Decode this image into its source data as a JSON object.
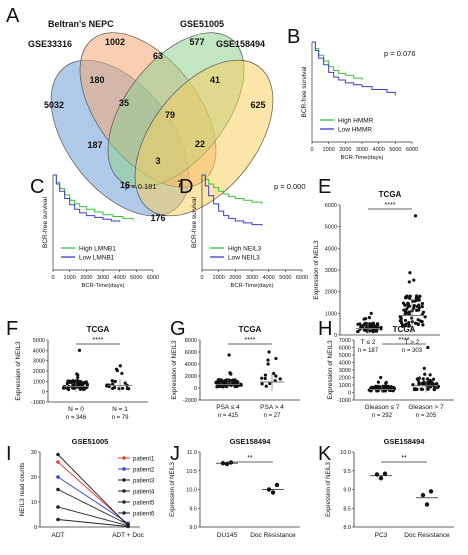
{
  "chart_data": [
    {
      "type": "venn",
      "panel": "A",
      "sets": [
        "GSE33316",
        "Beltran's NEPC",
        "GSE51005",
        "GSE158494"
      ],
      "colors": [
        "#6e9fd6",
        "#f2a773",
        "#8fd08f",
        "#f7cf63"
      ],
      "regions": [
        "5032",
        "1002",
        "577",
        "625",
        "180",
        "63",
        "41",
        "35",
        "3",
        "22",
        "187",
        "16",
        "7",
        "176",
        "79"
      ]
    },
    {
      "type": "line",
      "panel": "B",
      "subtype": "kaplan-meier",
      "annotation": "p = 0.076",
      "ylabel": "BCR-free survival",
      "xlabel": "BCR-Time(days)",
      "xticks": [
        "0",
        "1000",
        "2000",
        "3000",
        "4000",
        "5000",
        "6000"
      ],
      "series": [
        {
          "name": "High HMMR",
          "color": "#39c03c",
          "x": [
            0,
            200,
            400,
            700,
            1000,
            1300,
            1600,
            2000,
            2500,
            3000
          ],
          "y": [
            1.0,
            0.93,
            0.86,
            0.8,
            0.74,
            0.7,
            0.67,
            0.65,
            0.62,
            0.6
          ]
        },
        {
          "name": "Low HMMR",
          "color": "#3b3fc4",
          "x": [
            0,
            200,
            400,
            700,
            1000,
            1300,
            1600,
            2000,
            2500,
            3000,
            3600,
            4500,
            5000
          ],
          "y": [
            1.0,
            0.91,
            0.83,
            0.76,
            0.68,
            0.63,
            0.6,
            0.57,
            0.55,
            0.53,
            0.5,
            0.47,
            0.44
          ]
        }
      ]
    },
    {
      "type": "line",
      "panel": "C",
      "subtype": "kaplan-meier",
      "annotation": "p = 0.181",
      "ylabel": "BCR-free survival",
      "xlabel": "BCR-Time(days)",
      "xticks": [
        "0",
        "1000",
        "2000",
        "3000",
        "4000",
        "5000",
        "6000"
      ],
      "series": [
        {
          "name": "High LMNB1",
          "color": "#39c03c",
          "x": [
            0,
            200,
            400,
            700,
            1000,
            1300,
            1600,
            2000,
            2500,
            3000,
            3600,
            4200,
            4800
          ],
          "y": [
            1.0,
            0.92,
            0.85,
            0.78,
            0.72,
            0.68,
            0.65,
            0.62,
            0.59,
            0.56,
            0.54,
            0.52,
            0.5
          ]
        },
        {
          "name": "Low LMNB1",
          "color": "#3b3fc4",
          "x": [
            0,
            200,
            400,
            700,
            1000,
            1300,
            1600,
            2000,
            2500,
            3000,
            3500,
            4000
          ],
          "y": [
            1.0,
            0.9,
            0.82,
            0.74,
            0.67,
            0.62,
            0.58,
            0.55,
            0.53,
            0.51,
            0.49,
            0.48
          ]
        }
      ]
    },
    {
      "type": "line",
      "panel": "D",
      "subtype": "kaplan-meier",
      "annotation": "p = 0.000",
      "ylabel": "BCR-free survival",
      "xlabel": "BCR-Time(days)",
      "xticks": [
        "0",
        "1000",
        "2000",
        "3000",
        "4000",
        "5000",
        "6000"
      ],
      "series": [
        {
          "name": "High NEIL3",
          "color": "#39c03c",
          "x": [
            0,
            200,
            400,
            700,
            1000,
            1300,
            1600,
            2000,
            2500,
            3000,
            3600
          ],
          "y": [
            1.0,
            0.95,
            0.9,
            0.86,
            0.82,
            0.79,
            0.76,
            0.74,
            0.72,
            0.7,
            0.68
          ]
        },
        {
          "name": "Low NEIL3",
          "color": "#3b3fc4",
          "x": [
            0,
            200,
            400,
            700,
            1000,
            1300,
            1600,
            2000,
            2500,
            3000,
            3600
          ],
          "y": [
            1.0,
            0.88,
            0.77,
            0.68,
            0.6,
            0.55,
            0.52,
            0.49,
            0.47,
            0.45,
            0.44
          ]
        }
      ]
    },
    {
      "type": "scatter",
      "panel": "E",
      "title": "TCGA",
      "ylabel": "Expression of NEIL3",
      "ylim": [
        0,
        6000
      ],
      "yticks": [
        "0",
        "1000",
        "2000",
        "3000",
        "4000",
        "5000",
        "6000"
      ],
      "significance": "****",
      "groups": [
        {
          "label": "T ≤ 2",
          "n": "n = 187",
          "mean": 300,
          "sd": 250,
          "max": 1000
        },
        {
          "label": "T > 2",
          "n": "n = 303",
          "mean": 900,
          "sd": 800,
          "max": 5500
        }
      ]
    },
    {
      "type": "scatter",
      "panel": "F",
      "title": "TCGA",
      "ylabel": "Expression of NEIL3",
      "ylim": [
        -1000,
        5000
      ],
      "yticks": [
        "-1000",
        "0",
        "1000",
        "2000",
        "3000",
        "4000",
        "5000"
      ],
      "significance": "****",
      "groups": [
        {
          "label": "N = 0",
          "n": "n = 346",
          "mean": 500,
          "sd": 500,
          "max": 4000
        },
        {
          "label": "N = 1",
          "n": "n = 79",
          "mean": 600,
          "sd": 600,
          "max": 2500
        }
      ]
    },
    {
      "type": "scatter",
      "panel": "G",
      "title": "TCGA",
      "ylabel": "Expression of NEIL3",
      "ylim": [
        -2000,
        8000
      ],
      "yticks": [
        "-2000",
        "0",
        "2000",
        "4000",
        "6000",
        "8000"
      ],
      "significance": "****",
      "groups": [
        {
          "label": "PSA ≤ 4",
          "n": "n = 415",
          "mean": 600,
          "sd": 700,
          "max": 5500
        },
        {
          "label": "PSA > 4",
          "n": "n = 27",
          "mean": 1000,
          "sd": 1500,
          "max": 6000
        }
      ]
    },
    {
      "type": "scatter",
      "panel": "H",
      "title": "TCGA",
      "ylabel": "Expression of NEIL3",
      "ylim": [
        -1000,
        7000
      ],
      "yticks": [
        "-1000",
        "0",
        "1000",
        "2000",
        "3000",
        "4000",
        "5000",
        "6000",
        "7000"
      ],
      "significance": "****",
      "groups": [
        {
          "label": "Gleason ≤ 7",
          "n": "n = 292",
          "mean": 400,
          "sd": 400,
          "max": 2000
        },
        {
          "label": "Gleason > 7",
          "n": "n = 205",
          "mean": 900,
          "sd": 900,
          "max": 6000
        }
      ]
    },
    {
      "type": "line",
      "panel": "I",
      "title": "GSE51005",
      "ylabel": "NEIL3 read counts",
      "ylim": [
        0,
        30
      ],
      "yticks": [
        "0",
        "10",
        "20",
        "30"
      ],
      "categories": [
        "ADT",
        "ADT + Doc"
      ],
      "series": [
        {
          "name": "patient1",
          "color": "#e23b2c",
          "values": [
            26,
            1
          ]
        },
        {
          "name": "patient2",
          "color": "#2d3fd6",
          "values": [
            20,
            1.5
          ]
        },
        {
          "name": "patient3",
          "color": "#222222",
          "values": [
            29,
            0.5
          ]
        },
        {
          "name": "patient4",
          "color": "#222222",
          "values": [
            15,
            1
          ]
        },
        {
          "name": "patient5",
          "color": "#222222",
          "values": [
            8,
            0.5
          ]
        },
        {
          "name": "patient6",
          "color": "#222222",
          "values": [
            3,
            0.2
          ]
        }
      ]
    },
    {
      "type": "scatter",
      "panel": "J",
      "title": "GSE158494",
      "ylabel": "Expression of NEIL3",
      "ylim": [
        9.0,
        11.0
      ],
      "yticks": [
        "9.0",
        "9.5",
        "10.0",
        "10.5",
        "11.0"
      ],
      "significance": "**",
      "categories": [
        "DU145",
        "Doc Resistance"
      ],
      "points": [
        [
          10.7,
          10.68,
          10.72
        ],
        [
          10.0,
          9.92,
          10.12
        ]
      ],
      "means": [
        10.7,
        10.0
      ]
    },
    {
      "type": "scatter",
      "panel": "K",
      "title": "GSE158494",
      "ylabel": "Expression of NEIL3",
      "ylim": [
        8.0,
        10.0
      ],
      "yticks": [
        "8.0",
        "8.5",
        "9.0",
        "9.5",
        "10.0"
      ],
      "significance": "**",
      "categories": [
        "PC3",
        "Doc Resistance"
      ],
      "points": [
        [
          9.4,
          9.3,
          9.42
        ],
        [
          8.85,
          8.6,
          8.95
        ]
      ],
      "means": [
        9.37,
        8.78
      ]
    }
  ]
}
